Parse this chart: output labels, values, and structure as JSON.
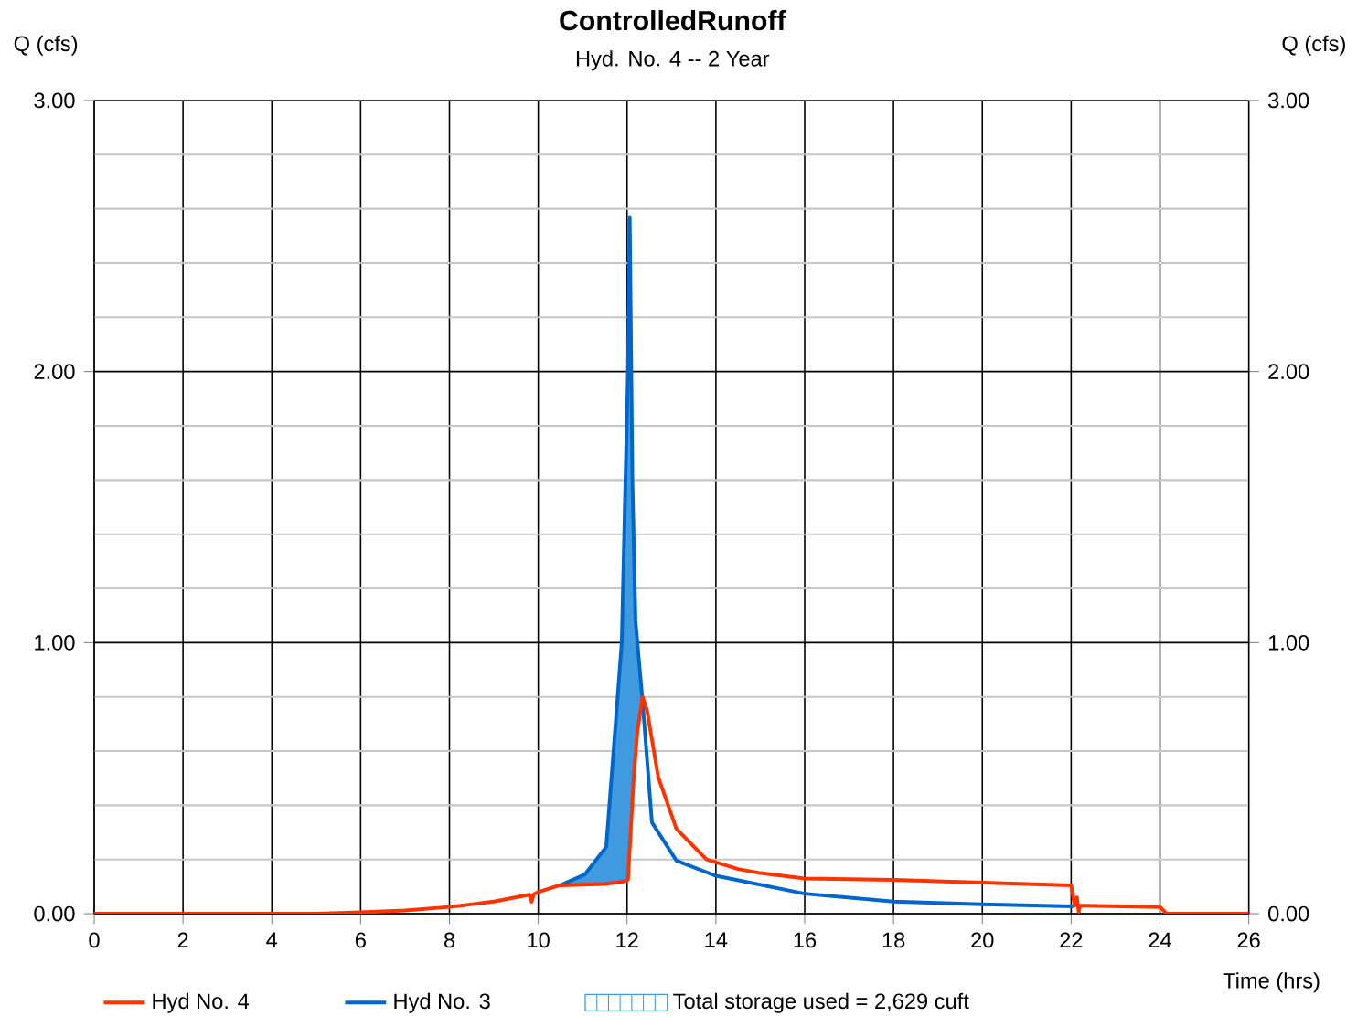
{
  "chart_data": {
    "type": "line",
    "title": "ControlledRunoff",
    "subtitle": "Hyd. No. 4 -- 2 Year",
    "xlabel": "Time (hrs)",
    "ylabel": "Q (cfs)",
    "y2label": "Q (cfs)",
    "xlim": [
      0,
      26
    ],
    "xticks": [
      0,
      2,
      4,
      6,
      8,
      10,
      12,
      14,
      16,
      18,
      20,
      22,
      24,
      26
    ],
    "ylim": [
      0,
      3
    ],
    "yticks": [
      {
        "value": 0,
        "label": "0.00"
      },
      {
        "value": 1,
        "label": "1.00"
      },
      {
        "value": 2,
        "label": "2.00"
      },
      {
        "value": 3,
        "label": "3.00"
      }
    ],
    "y2lim": [
      0,
      3
    ],
    "y2ticks": [
      {
        "value": 0,
        "label": "0.00"
      },
      {
        "value": 1,
        "label": "1.00"
      },
      {
        "value": 2,
        "label": "2.00"
      },
      {
        "value": 3,
        "label": "3.00"
      }
    ],
    "grid": true,
    "legend": "bottom",
    "series": [
      {
        "name": "Hyd No. 4",
        "color": "#ff3300",
        "x": [
          0,
          5,
          6,
          7,
          8,
          9,
          9.8,
          9.85,
          9.9,
          10,
          10.48,
          11,
          11.5,
          11.9,
          12.02,
          12.08,
          12.15,
          12.23,
          12.35,
          12.45,
          12.7,
          13.11,
          13.79,
          14.5,
          15,
          16,
          18,
          20,
          22,
          22.08,
          22.13,
          22.17,
          22.2,
          22.3,
          24,
          24.15,
          26
        ],
        "values": [
          0,
          0,
          0.005,
          0.012,
          0.025,
          0.045,
          0.07,
          0.044,
          0.072,
          0.08,
          0.105,
          0.107,
          0.11,
          0.118,
          0.125,
          0.3,
          0.5,
          0.67,
          0.8,
          0.75,
          0.505,
          0.313,
          0.2,
          0.165,
          0.15,
          0.13,
          0.125,
          0.115,
          0.105,
          0.03,
          0.06,
          0.007,
          0.03,
          0.03,
          0.025,
          0,
          0
        ]
      },
      {
        "name": "Hyd No. 3",
        "color": "#0066cc",
        "x": [
          10.5,
          11.05,
          11.53,
          11.88,
          12.02,
          12.06,
          12.12,
          12.19,
          12.35,
          12.56,
          13.11,
          14,
          16,
          18,
          20,
          22.05
        ],
        "values": [
          0.105,
          0.145,
          0.246,
          1.0,
          2.0,
          2.57,
          1.6,
          1.08,
          0.78,
          0.337,
          0.196,
          0.14,
          0.074,
          0.045,
          0.035,
          0.027
        ]
      },
      {
        "name": "Total storage used = 2,629 cuft",
        "type": "area",
        "color": "#3f9ae0",
        "x": [
          10.48,
          11.05,
          11.53,
          11.88,
          12.02,
          12.06,
          12.12,
          12.19,
          12.35
        ],
        "values": [
          0.105,
          0.145,
          0.246,
          1.0,
          2.0,
          2.57,
          1.6,
          1.08,
          0.78
        ]
      }
    ]
  }
}
